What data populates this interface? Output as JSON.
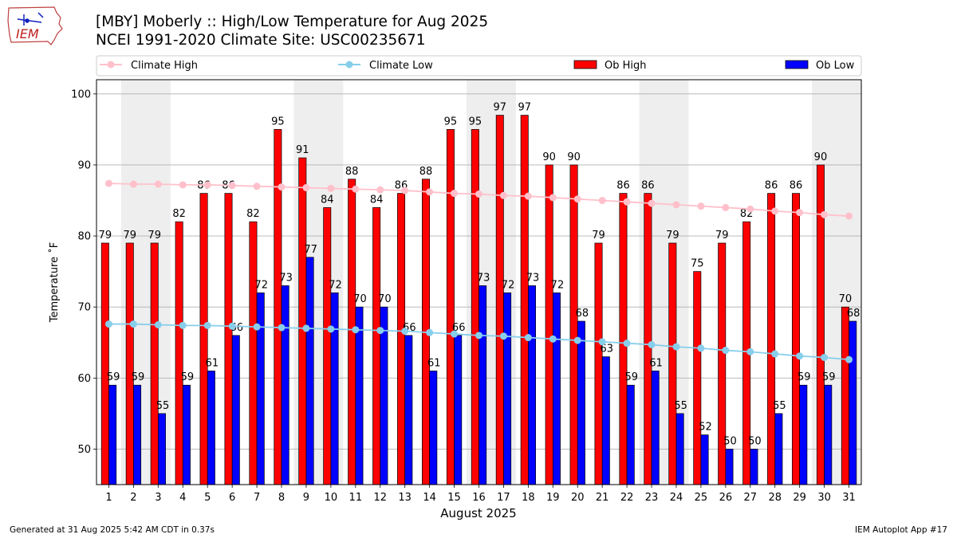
{
  "header": {
    "logo_text": "IEM",
    "title_line1": "[MBY] Moberly :: High/Low Temperature for Aug 2025",
    "title_line2": "NCEI 1991-2020 Climate Site: USC00235671"
  },
  "footer": {
    "generated": "Generated at 31 Aug 2025 5:42 AM CDT in 0.37s",
    "app": "IEM Autoplot App #17"
  },
  "colors": {
    "ob_high": "#ff0000",
    "ob_low": "#0000ff",
    "climate_high": "#ffc0cb",
    "climate_low": "#87ceeb",
    "weekend_shade": "#eeeeee",
    "grid": "#b0b0b0"
  },
  "chart_data": {
    "type": "bar",
    "xlabel": "August 2025",
    "ylabel": "Temperature ˚F",
    "ylim": [
      45,
      102
    ],
    "yticks": [
      50,
      60,
      70,
      80,
      90,
      100
    ],
    "grid": "horizontal",
    "legend_position": "top",
    "categories": [
      "1",
      "2",
      "3",
      "4",
      "5",
      "6",
      "7",
      "8",
      "9",
      "10",
      "11",
      "12",
      "13",
      "14",
      "15",
      "16",
      "17",
      "18",
      "19",
      "20",
      "21",
      "22",
      "23",
      "24",
      "25",
      "26",
      "27",
      "28",
      "29",
      "30",
      "31"
    ],
    "weekend_days": [
      2,
      3,
      9,
      10,
      16,
      17,
      23,
      24,
      30,
      31
    ],
    "series": [
      {
        "name": "Climate High",
        "kind": "line",
        "values": [
          87.4,
          87.3,
          87.3,
          87.2,
          87.2,
          87.1,
          87.0,
          86.9,
          86.8,
          86.7,
          86.6,
          86.5,
          86.4,
          86.2,
          86.0,
          85.9,
          85.7,
          85.6,
          85.4,
          85.2,
          85.0,
          84.8,
          84.6,
          84.4,
          84.2,
          84.0,
          83.8,
          83.5,
          83.3,
          83.0,
          82.8
        ]
      },
      {
        "name": "Climate Low",
        "kind": "line",
        "values": [
          67.6,
          67.6,
          67.5,
          67.4,
          67.4,
          67.3,
          67.2,
          67.1,
          67.0,
          66.9,
          66.8,
          66.7,
          66.6,
          66.4,
          66.2,
          66.0,
          65.9,
          65.7,
          65.5,
          65.3,
          65.1,
          64.9,
          64.7,
          64.4,
          64.2,
          63.9,
          63.7,
          63.4,
          63.1,
          62.9,
          62.6
        ]
      },
      {
        "name": "Ob High",
        "kind": "bar",
        "values": [
          79,
          79,
          79,
          82,
          86,
          86,
          82,
          95,
          91,
          84,
          88,
          84,
          86,
          88,
          95,
          95,
          97,
          97,
          90,
          90,
          79,
          86,
          86,
          79,
          75,
          79,
          82,
          86,
          86,
          90,
          70
        ]
      },
      {
        "name": "Ob Low",
        "kind": "bar",
        "values": [
          59,
          59,
          55,
          59,
          61,
          66,
          72,
          73,
          77,
          72,
          70,
          70,
          66,
          61,
          66,
          73,
          72,
          73,
          72,
          68,
          63,
          59,
          61,
          55,
          52,
          50,
          50,
          55,
          59,
          59,
          68
        ]
      }
    ],
    "high_labels": [
      "79",
      "79",
      "79",
      "82",
      "86",
      "86",
      "82",
      "95",
      "91",
      "84",
      "88",
      "84",
      "86",
      "88",
      "95",
      "95",
      "97",
      "97",
      "90",
      "90",
      "79",
      "86",
      "86",
      "79",
      "75",
      "79",
      "82",
      "86",
      "86",
      "90",
      "70"
    ],
    "low_labels": [
      "59",
      "59",
      "55",
      "59",
      "61",
      "66",
      "72",
      "73",
      "77",
      "72",
      "70",
      "70",
      "66",
      "61",
      "66",
      "73",
      "72",
      "73",
      "72",
      "68",
      "63",
      "59",
      "61",
      "55",
      "52",
      "50",
      "50",
      "55",
      "59",
      "59",
      "68"
    ]
  }
}
